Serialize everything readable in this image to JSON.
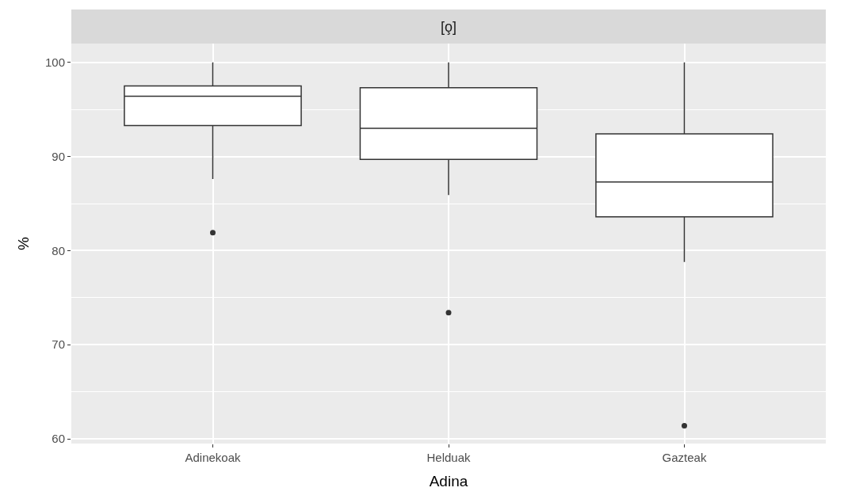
{
  "chart_data": {
    "type": "box",
    "title": "[o̧]",
    "xlabel": "Adina",
    "ylabel": "%",
    "categories": [
      "Adinekoak",
      "Helduak",
      "Gazteak"
    ],
    "boxes": [
      {
        "low": 87.6,
        "q1": 93.3,
        "median": 96.4,
        "q3": 97.5,
        "high": 100,
        "outliers": [
          81.9
        ]
      },
      {
        "low": 85.9,
        "q1": 89.7,
        "median": 93.0,
        "q3": 97.3,
        "high": 100,
        "outliers": [
          73.4
        ]
      },
      {
        "low": 78.8,
        "q1": 83.6,
        "median": 87.3,
        "q3": 92.4,
        "high": 100,
        "outliers": [
          61.4
        ]
      }
    ],
    "ylim": [
      59.5,
      102
    ],
    "yticks": [
      60,
      70,
      80,
      90,
      100
    ],
    "grid": true
  }
}
